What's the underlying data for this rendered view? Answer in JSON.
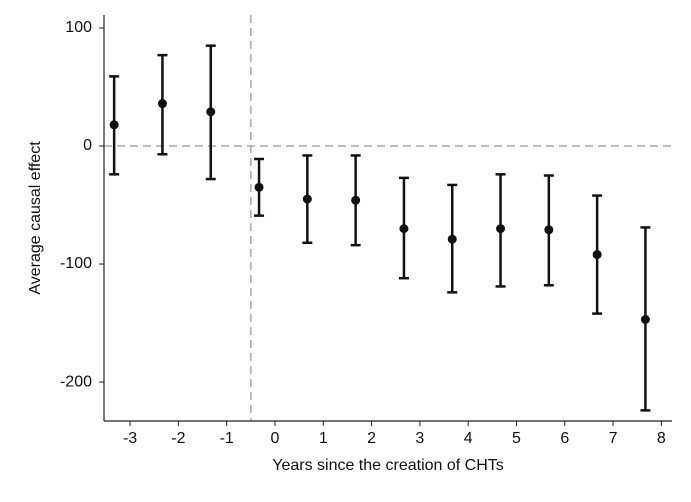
{
  "chart_data": {
    "type": "errorbar",
    "x_label": "Years since the creation of CHTs",
    "y_label": "Average causal effect",
    "x": [
      -3.33,
      -2.33,
      -1.33,
      -0.33,
      0.67,
      1.67,
      2.67,
      3.67,
      4.67,
      5.67,
      6.67,
      7.67
    ],
    "values": [
      18,
      36,
      29,
      -35,
      -45,
      -46,
      -70,
      -79,
      -70,
      -71,
      -92,
      -147
    ],
    "lower": [
      -24,
      -7,
      -28,
      -59,
      -82,
      -84,
      -112,
      -124,
      -119,
      -118,
      -142,
      -224
    ],
    "upper": [
      59,
      77,
      85,
      -11,
      -8,
      -8,
      -27,
      -33,
      -24,
      -25,
      -42,
      -69
    ],
    "color": "#111111",
    "xlim": [
      -3.54,
      8.22
    ],
    "ylim": [
      -233,
      111
    ],
    "xticks": [
      -3,
      -2,
      -1,
      0,
      1,
      2,
      3,
      4,
      5,
      6,
      7,
      8
    ],
    "yticks": [
      100,
      0,
      -100,
      -200
    ],
    "hline": 0,
    "vline": -0.5
  }
}
